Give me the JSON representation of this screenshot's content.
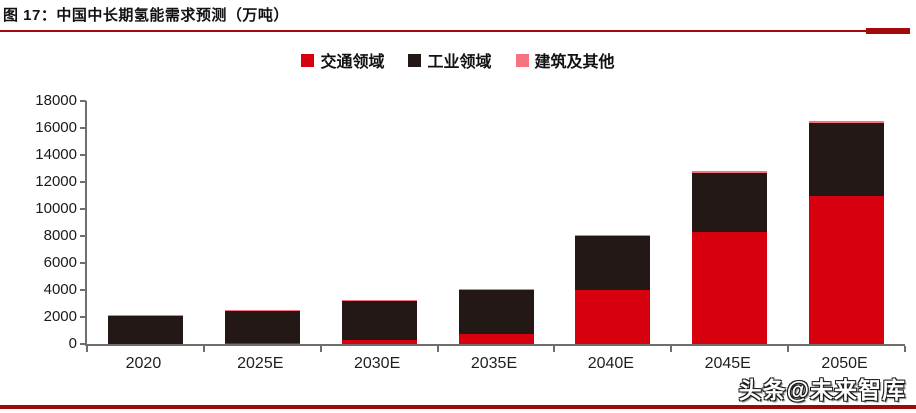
{
  "figure": {
    "title": "图 17：中国中长期氢能需求预测（万吨）",
    "watermark": "头条@未来智库"
  },
  "colors": {
    "rule": "#a30b0b",
    "bottom_rule": "#9c0a0a",
    "transport": "#d7000f",
    "industry": "#231815",
    "building": "#f4737e",
    "axis": "#6e6e6e"
  },
  "chart_data": {
    "type": "bar",
    "stacked": true,
    "title": "中国中长期氢能需求预测（万吨）",
    "categories": [
      "2020",
      "2025E",
      "2030E",
      "2035E",
      "2040E",
      "2045E",
      "2050E"
    ],
    "series": [
      {
        "name": "交通领域",
        "color_key": "transport",
        "values": [
          0,
          50,
          300,
          750,
          4000,
          8300,
          11000
        ]
      },
      {
        "name": "工业领域",
        "color_key": "industry",
        "values": [
          2100,
          2400,
          2850,
          3250,
          4000,
          4400,
          5350
        ]
      },
      {
        "name": "建筑及其他",
        "color_key": "building",
        "values": [
          50,
          50,
          50,
          50,
          100,
          100,
          150
        ]
      }
    ],
    "totals": [
      2150,
      2500,
      3200,
      4050,
      8100,
      12800,
      16500
    ],
    "xlabel": "",
    "ylabel": "",
    "ylim": [
      0,
      18000
    ],
    "ytick_step": 2000,
    "ytick_labels": [
      "0",
      "2000",
      "4000",
      "6000",
      "8000",
      "10000",
      "12000",
      "14000",
      "16000",
      "18000"
    ],
    "legend_position": "top-center",
    "grid": false
  }
}
